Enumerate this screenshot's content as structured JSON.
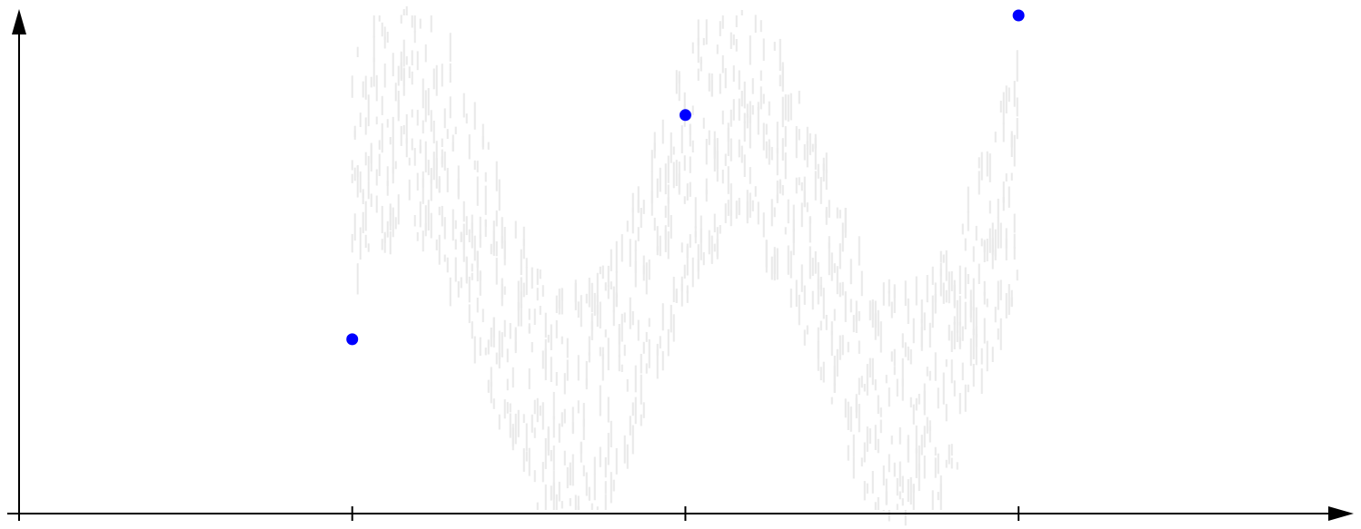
{
  "chart_data": {
    "type": "scatter",
    "title": "",
    "xlabel": "",
    "ylabel": "",
    "x_ticks": [
      1,
      2,
      3
    ],
    "xlim": [
      0,
      4
    ],
    "ylim": [
      0,
      1
    ],
    "grid": false,
    "legend": "none",
    "background_band": {
      "description_color": "#e8e8e8",
      "period": 1,
      "center_amplitude": 0.5,
      "center_offset": 0.5,
      "spread": 0.45,
      "x_range": [
        1,
        3
      ]
    },
    "series": [
      {
        "color": "#0000ff",
        "points": [
          {
            "x": 1,
            "y": 0.35
          },
          {
            "x": 2,
            "y": 0.8
          },
          {
            "x": 3,
            "y": 1.0
          }
        ]
      }
    ]
  },
  "colors": {
    "axis": "#000000",
    "points": "#0000ff",
    "band": "#e8e8e8"
  }
}
